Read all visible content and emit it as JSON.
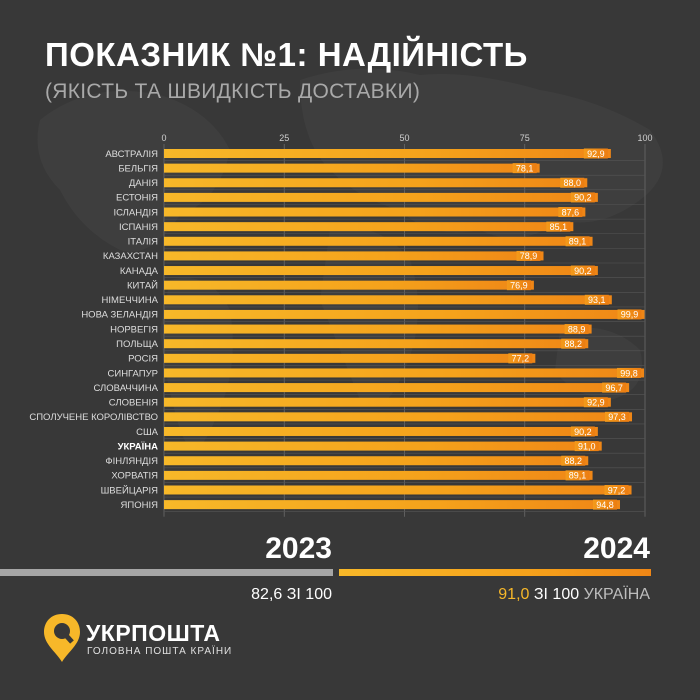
{
  "header": {
    "title": "ПОКАЗНИК №1: НАДІЙНІСТЬ",
    "subtitle": "(ЯКІСТЬ ТА ШВИДКІСТЬ ДОСТАВКИ)"
  },
  "chart_data": {
    "type": "bar",
    "orientation": "horizontal",
    "title": "",
    "xlabel": "",
    "ylabel": "",
    "xlim": [
      0,
      100
    ],
    "xticks": [
      "0",
      "25",
      "50",
      "75",
      "100"
    ],
    "grid": true,
    "legend": "none",
    "categories": [
      "АВСТРАЛІЯ",
      "БЕЛЬГІЯ",
      "ДАНІЯ",
      "ЕСТОНІЯ",
      "ІСЛАНДІЯ",
      "ІСПАНІЯ",
      "ІТАЛІЯ",
      "КАЗАХСТАН",
      "КАНАДА",
      "КИТАЙ",
      "НІМЕЧЧИНА",
      "НОВА ЗЕЛАНДІЯ",
      "НОРВЕГІЯ",
      "ПОЛЬЩА",
      "РОСІЯ",
      "СИНГАПУР",
      "СЛОВАЧЧИНА",
      "СЛОВЕНІЯ",
      "СПОЛУЧЕНЕ КОРОЛІВСТВО",
      "США",
      "УКРАЇНА",
      "ФІНЛЯНДІЯ",
      "ХОРВАТІЯ",
      "ШВЕЙЦАРІЯ",
      "ЯПОНІЯ"
    ],
    "values": [
      92.9,
      78.1,
      88.0,
      90.2,
      87.6,
      85.1,
      89.1,
      78.9,
      90.2,
      76.9,
      93.1,
      99.9,
      88.9,
      88.2,
      77.2,
      99.8,
      96.7,
      92.9,
      97.3,
      90.2,
      91.0,
      88.2,
      89.1,
      97.2,
      94.8
    ],
    "value_labels": [
      "92,9",
      "78,1",
      "88,0",
      "90,2",
      "87,6",
      "85,1",
      "89,1",
      "78,9",
      "90,2",
      "76,9",
      "93,1",
      "99,9",
      "88,9",
      "88,2",
      "77,2",
      "99,8",
      "96,7",
      "92,9",
      "97,3",
      "90,2",
      "91,0",
      "88,2",
      "89,1",
      "97,2",
      "94,8"
    ],
    "highlight": "УКРАЇНА",
    "colors": {
      "bar_start": "#f7b829",
      "bar_end": "#ef8616",
      "label_text": "#ffffff",
      "grid": "#6a6a6a"
    }
  },
  "comparison": {
    "year_2023": "2023",
    "year_2024": "2024",
    "score_2023_value": "82,6",
    "score_2023_suffix": "ЗІ 100",
    "score_2024_value": "91,0",
    "score_2024_suffix": "ЗІ 100",
    "score_2024_country": "УКРАЇНА",
    "score_2023": 82.6,
    "score_2024": 91.0,
    "colors": {
      "gray": "#a6a6a6",
      "orange": "#f5a21b",
      "accent": "#f7b829"
    }
  },
  "logo": {
    "icon": "ukrposhta-pin-icon",
    "name": "УКРПОШТА",
    "tagline": "ГОЛОВНА ПОШТА КРАЇНИ"
  }
}
